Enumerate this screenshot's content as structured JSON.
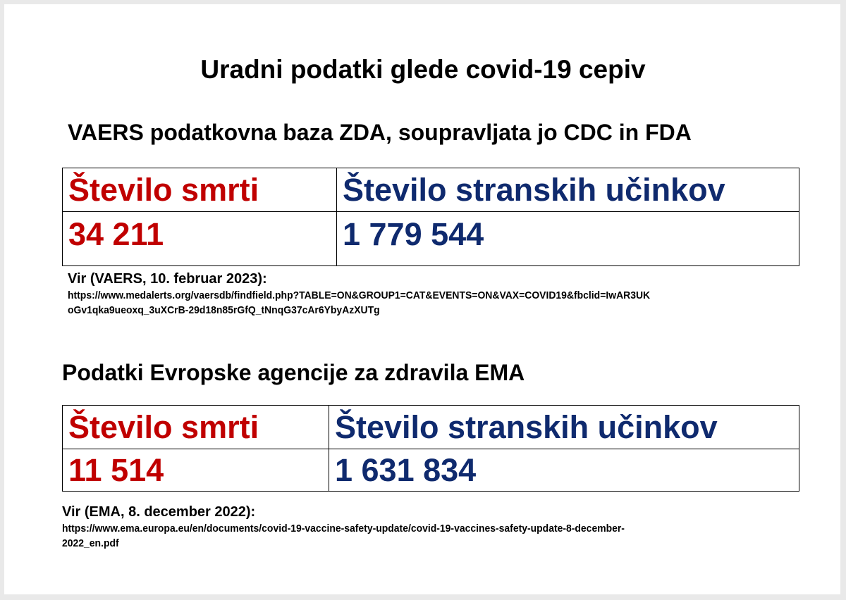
{
  "title": "Uradni podatki glede covid-19 cepiv",
  "vaers": {
    "heading": "VAERS podatkovna baza ZDA, soupravljata jo CDC in FDA",
    "deaths_label": "Število smrti",
    "side_effects_label": "Število stranskih učinkov",
    "deaths_value": "34 211",
    "side_effects_value": "1 779 544",
    "source_label": "Vir (VAERS, 10. februar 2023):",
    "source_url_line1": "https://www.medalerts.org/vaersdb/findfield.php?TABLE=ON&GROUP1=CAT&EVENTS=ON&VAX=COVID19&fbclid=IwAR3UK",
    "source_url_line2": "oGv1qka9ueoxq_3uXCrB-29d18n85rGfQ_tNnqG37cAr6YbyAzXUTg"
  },
  "ema": {
    "heading": "Podatki Evropske agencije za zdravila EMA",
    "deaths_label": "Število smrti",
    "side_effects_label": "Število stranskih učinkov",
    "deaths_value": "11 514",
    "side_effects_value": "1 631 834",
    "source_label": "Vir (EMA, 8. december 2022):",
    "source_url_line1": "https://www.ema.europa.eu/en/documents/covid-19-vaccine-safety-update/covid-19-vaccines-safety-update-8-december-",
    "source_url_line2": "2022_en.pdf"
  },
  "colors": {
    "deaths": "#c00000",
    "side_effects": "#0f2a6e"
  }
}
